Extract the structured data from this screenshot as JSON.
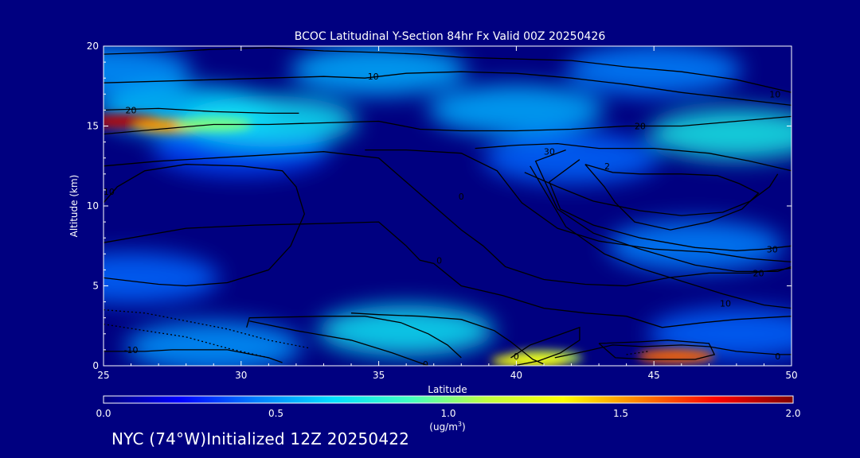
{
  "chart_data": {
    "type": "heatmap",
    "title": "BCOC Latitudinal Y-Section 84hr  Fx Valid 00Z 20250426",
    "xlabel": "Latitude",
    "ylabel": "Altitude (km)",
    "xlim": [
      25,
      50
    ],
    "ylim": [
      0,
      20
    ],
    "x_ticks": [
      "25",
      "30",
      "35",
      "40",
      "45",
      "50"
    ],
    "y_ticks": [
      "0",
      "5",
      "10",
      "15",
      "20"
    ],
    "colorbar": {
      "min": 0.0,
      "max": 2.0,
      "ticks": [
        "0.0",
        "0.5",
        "1.0",
        "1.5",
        "2.0"
      ],
      "unit_main": "(ug/m",
      "unit_sup": "3",
      "unit_end": ")",
      "colors": [
        "#000080",
        "#0000ff",
        "#0080ff",
        "#00e0ff",
        "#40ffc0",
        "#c0ff40",
        "#ffff00",
        "#ff8000",
        "#ff0000",
        "#800000"
      ]
    },
    "concentration_patches": [
      {
        "lat": 25.0,
        "alt": 18.5,
        "value": 0.5
      },
      {
        "lat": 35.0,
        "alt": 18.5,
        "value": 0.55
      },
      {
        "lat": 45.0,
        "alt": 18.5,
        "value": 0.45
      },
      {
        "lat": 28.0,
        "alt": 16.0,
        "value": 0.6
      },
      {
        "lat": 40.0,
        "alt": 16.0,
        "value": 0.55
      },
      {
        "lat": 48.0,
        "alt": 14.5,
        "value": 0.75
      },
      {
        "lat": 42.0,
        "alt": 13.0,
        "value": 0.4
      },
      {
        "lat": 30.0,
        "alt": 13.5,
        "value": 0.35
      },
      {
        "lat": 46.5,
        "alt": 7.5,
        "value": 0.45
      },
      {
        "lat": 26.0,
        "alt": 5.5,
        "value": 0.4
      },
      {
        "lat": 36.0,
        "alt": 2.2,
        "value": 0.7
      },
      {
        "lat": 29.0,
        "alt": 1.2,
        "value": 0.5
      },
      {
        "lat": 41.0,
        "alt": 0.5,
        "value": 1.1
      },
      {
        "lat": 48.0,
        "alt": 2.0,
        "value": 0.4
      },
      {
        "lat": 25.8,
        "alt": 15.3,
        "value": 1.9
      },
      {
        "lat": 27.5,
        "alt": 15.0,
        "value": 1.5
      },
      {
        "lat": 29.0,
        "alt": 15.1,
        "value": 1.0
      },
      {
        "lat": 31.0,
        "alt": 15.3,
        "value": 0.7
      },
      {
        "lat": 45.8,
        "alt": 0.6,
        "value": 1.6
      },
      {
        "lat": 40.5,
        "alt": 0.3,
        "value": 1.3
      }
    ],
    "contours": [
      {
        "label": "10",
        "points": [
          [
            25,
            19.5
          ],
          [
            27,
            19.6
          ],
          [
            29,
            19.8
          ],
          [
            31,
            19.9
          ],
          [
            33,
            19.7
          ],
          [
            35,
            19.6
          ],
          [
            36.5,
            19.5
          ],
          [
            38,
            19.3
          ],
          [
            40,
            19.2
          ],
          [
            42,
            19.1
          ],
          [
            44,
            18.7
          ],
          [
            46,
            18.4
          ],
          [
            48,
            17.9
          ],
          [
            50,
            17.1
          ]
        ],
        "label_at": [
          34.8,
          18.1
        ]
      },
      {
        "label": "10",
        "points": [
          [
            25,
            17.7
          ],
          [
            27,
            17.8
          ],
          [
            29,
            17.9
          ],
          [
            31,
            18.0
          ],
          [
            33,
            18.1
          ],
          [
            34.5,
            18.0
          ],
          [
            36,
            18.3
          ],
          [
            38,
            18.4
          ],
          [
            40,
            18.3
          ],
          [
            42,
            18.0
          ],
          [
            44,
            17.6
          ],
          [
            46,
            17.1
          ],
          [
            48,
            16.7
          ],
          [
            50,
            16.3
          ]
        ],
        "label_at": [
          49.4,
          17.0
        ]
      },
      {
        "label": "20",
        "points": [
          [
            25,
            16.0
          ],
          [
            27,
            16.1
          ],
          [
            29,
            15.9
          ],
          [
            31,
            15.8
          ],
          [
            32.1,
            15.8
          ]
        ],
        "label_at": [
          26.0,
          16.0
        ]
      },
      {
        "label": "20",
        "points": [
          [
            25,
            14.5
          ],
          [
            27,
            14.8
          ],
          [
            29,
            15.1
          ],
          [
            31,
            15.1
          ],
          [
            33,
            15.2
          ],
          [
            35,
            15.3
          ],
          [
            36.5,
            14.8
          ],
          [
            38,
            14.7
          ],
          [
            40,
            14.7
          ],
          [
            42,
            14.8
          ],
          [
            44,
            15.0
          ],
          [
            46,
            15.0
          ],
          [
            48,
            15.3
          ],
          [
            50,
            15.6
          ]
        ],
        "label_at": [
          44.5,
          15.0
        ]
      },
      {
        "label": "10",
        "points": [
          [
            25,
            10.2
          ],
          [
            25.5,
            11.2
          ],
          [
            26.5,
            12.2
          ],
          [
            28,
            12.6
          ],
          [
            30,
            12.5
          ],
          [
            31.5,
            12.2
          ],
          [
            32,
            11.2
          ],
          [
            32.3,
            9.5
          ],
          [
            31.8,
            7.5
          ],
          [
            31,
            6.0
          ],
          [
            29.5,
            5.2
          ],
          [
            28,
            5.0
          ],
          [
            27,
            5.1
          ],
          [
            26,
            5.3
          ],
          [
            25,
            5.5
          ]
        ],
        "label_at": [
          25.2,
          10.9
        ]
      },
      {
        "label": "",
        "points": [
          [
            25,
            12.5
          ],
          [
            27,
            12.8
          ],
          [
            29,
            13.0
          ],
          [
            31,
            13.2
          ],
          [
            33,
            13.4
          ],
          [
            35,
            13.0
          ],
          [
            36,
            11.5
          ],
          [
            37,
            10.0
          ],
          [
            38,
            8.5
          ],
          [
            38.8,
            7.5
          ],
          [
            39.6,
            6.2
          ],
          [
            41,
            5.4
          ],
          [
            42.5,
            5.1
          ],
          [
            44,
            5.0
          ],
          [
            45.5,
            5.5
          ],
          [
            47,
            5.8
          ],
          [
            48.5,
            5.8
          ],
          [
            50,
            6.1
          ]
        ],
        "label_at": [
          0,
          0
        ]
      },
      {
        "label": "0",
        "points": [
          [
            25,
            7.7
          ],
          [
            28,
            8.6
          ],
          [
            30.5,
            8.8
          ],
          [
            33,
            8.9
          ],
          [
            35,
            9.0
          ],
          [
            36,
            7.5
          ],
          [
            36.5,
            6.6
          ],
          [
            37,
            6.4
          ],
          [
            38,
            5.0
          ],
          [
            39.5,
            4.4
          ],
          [
            41,
            3.6
          ],
          [
            42.5,
            3.3
          ],
          [
            44,
            3.1
          ],
          [
            45.3,
            2.4
          ],
          [
            46.8,
            2.7
          ],
          [
            48,
            2.9
          ],
          [
            50,
            3.1
          ]
        ],
        "label_at": [
          37.2,
          6.6
        ]
      },
      {
        "label": "0",
        "points": [
          [
            34.5,
            13.5
          ],
          [
            36,
            13.5
          ],
          [
            38,
            13.3
          ],
          [
            39.3,
            12.2
          ],
          [
            40.2,
            10.2
          ],
          [
            41.5,
            8.6
          ],
          [
            43,
            7.8
          ],
          [
            45,
            7.3
          ],
          [
            47,
            7.1
          ],
          [
            48.5,
            6.7
          ],
          [
            50,
            6.5
          ]
        ],
        "label_at": [
          38.0,
          10.6
        ]
      },
      {
        "label": "30",
        "points": [
          [
            38.5,
            13.6
          ],
          [
            40,
            13.8
          ],
          [
            41.5,
            13.9
          ],
          [
            43,
            13.6
          ],
          [
            45,
            13.6
          ],
          [
            47,
            13.3
          ],
          [
            48.5,
            12.8
          ],
          [
            50,
            12.2
          ]
        ],
        "label_at": [
          41.2,
          13.4
        ]
      },
      {
        "label": "",
        "points": [
          [
            40.3,
            12.1
          ],
          [
            41.5,
            11.2
          ],
          [
            42.8,
            10.3
          ],
          [
            44.5,
            9.7
          ],
          [
            46,
            9.4
          ],
          [
            47.5,
            9.6
          ],
          [
            48.5,
            10.3
          ],
          [
            49.2,
            11.2
          ],
          [
            49.5,
            12.0
          ]
        ],
        "label_at": [
          0,
          0
        ]
      },
      {
        "label": "2",
        "points": [
          [
            42.5,
            12.6
          ],
          [
            43.5,
            12.1
          ],
          [
            44.5,
            12.0
          ],
          [
            46,
            12.0
          ],
          [
            47.3,
            11.9
          ],
          [
            48.1,
            11.4
          ],
          [
            48.8,
            10.8
          ],
          [
            48.2,
            9.8
          ],
          [
            47,
            9.0
          ],
          [
            45.6,
            8.5
          ],
          [
            44.3,
            9.0
          ],
          [
            43.6,
            10.2
          ],
          [
            43.2,
            11.2
          ],
          [
            42.8,
            12.0
          ],
          [
            42.5,
            12.6
          ]
        ],
        "label_at": [
          43.3,
          12.5
        ]
      },
      {
        "label": "30",
        "points": [
          [
            42.3,
            12.9
          ],
          [
            41.2,
            11.5
          ],
          [
            41.6,
            9.8
          ],
          [
            42.8,
            8.8
          ],
          [
            44.5,
            8.0
          ],
          [
            46.5,
            7.4
          ],
          [
            48,
            7.2
          ],
          [
            49,
            7.3
          ],
          [
            50,
            7.5
          ]
        ],
        "label_at": [
          49.3,
          7.3
        ]
      },
      {
        "label": "20",
        "points": [
          [
            41.8,
            13.5
          ],
          [
            40.7,
            12.8
          ],
          [
            41.5,
            9.8
          ],
          [
            42.8,
            8.3
          ],
          [
            44.5,
            7.3
          ],
          [
            46.5,
            6.3
          ],
          [
            48,
            5.9
          ],
          [
            49.5,
            5.9
          ],
          [
            50,
            6.2
          ]
        ],
        "label_at": [
          48.8,
          5.8
        ]
      },
      {
        "label": "10",
        "points": [
          [
            40.5,
            12.5
          ],
          [
            41.8,
            8.7
          ],
          [
            43.2,
            7.0
          ],
          [
            44.5,
            6.1
          ],
          [
            46,
            5.3
          ],
          [
            47.5,
            4.5
          ],
          [
            49,
            3.8
          ],
          [
            50,
            3.6
          ]
        ],
        "label_at": [
          47.6,
          3.9
        ]
      },
      {
        "label": "0",
        "points": [
          [
            34,
            3.3
          ],
          [
            35,
            3.2
          ],
          [
            36.5,
            3.1
          ],
          [
            38,
            2.9
          ],
          [
            39.2,
            2.2
          ],
          [
            39.8,
            1.5
          ],
          [
            40.6,
            0.4
          ],
          [
            41,
            0.1
          ]
        ],
        "label_at": [
          40.0,
          0.6
        ]
      },
      {
        "label": "0",
        "points": [
          [
            30.2,
            2.4
          ],
          [
            30.3,
            3.0
          ],
          [
            33.0,
            3.1
          ],
          [
            34.5,
            3.1
          ],
          [
            35.8,
            2.7
          ],
          [
            36.8,
            2.0
          ],
          [
            37.5,
            1.3
          ],
          [
            38.0,
            0.5
          ]
        ],
        "label_at": [
          36.7,
          0.1
        ]
      },
      {
        "label": "",
        "points": [
          [
            30.3,
            2.8
          ],
          [
            32,
            2.2
          ],
          [
            34,
            1.6
          ],
          [
            35.5,
            0.8
          ],
          [
            36.8,
            0.0
          ]
        ],
        "label_at": [
          0,
          0
        ]
      },
      {
        "label": "0",
        "points": [
          [
            41.4,
            0.5
          ],
          [
            42.5,
            0.9
          ],
          [
            43.5,
            1.3
          ],
          [
            44.6,
            1.2
          ],
          [
            46,
            1.3
          ],
          [
            47,
            1.2
          ],
          [
            48,
            0.9
          ],
          [
            49.5,
            0.7
          ],
          [
            50,
            0.7
          ]
        ],
        "label_at": [
          49.5,
          0.6
        ]
      },
      {
        "label": "",
        "points": [
          [
            39.8,
            0.5
          ],
          [
            40.5,
            1.3
          ],
          [
            41.5,
            1.9
          ],
          [
            42.3,
            2.4
          ],
          [
            42.3,
            1.6
          ],
          [
            41.6,
            0.8
          ],
          [
            40.8,
            0.3
          ],
          [
            39.9,
            0.0
          ]
        ],
        "label_at": [
          0,
          0
        ]
      },
      {
        "label": "",
        "points": [
          [
            43,
            1.4
          ],
          [
            44.5,
            1.5
          ],
          [
            45.5,
            1.6
          ],
          [
            47,
            1.4
          ],
          [
            47.2,
            0.7
          ],
          [
            46.5,
            0.4
          ],
          [
            44.8,
            0.4
          ],
          [
            43.6,
            0.5
          ],
          [
            43,
            1.4
          ]
        ],
        "label_at": [
          0,
          0
        ]
      },
      {
        "label": "-10",
        "points": [
          [
            25,
            0.9
          ],
          [
            26.5,
            0.9
          ],
          [
            27.5,
            1.0
          ],
          [
            29.5,
            1.0
          ],
          [
            31,
            0.5
          ],
          [
            31.5,
            0.2
          ]
        ],
        "label_at": [
          26.0,
          1.0
        ]
      }
    ],
    "dotted_contours": [
      [
        [
          25,
          3.5
        ],
        [
          26.5,
          3.3
        ],
        [
          28,
          2.8
        ],
        [
          29.5,
          2.3
        ],
        [
          31,
          1.6
        ],
        [
          32.5,
          1.1
        ]
      ],
      [
        [
          25,
          2.6
        ],
        [
          26.5,
          2.2
        ],
        [
          28,
          1.8
        ],
        [
          29.5,
          1.1
        ],
        [
          31,
          0.5
        ]
      ],
      [
        [
          44.0,
          0.7
        ],
        [
          44.8,
          0.9
        ]
      ]
    ]
  },
  "footer": "NYC (74°W)Initialized 12Z 20250422"
}
